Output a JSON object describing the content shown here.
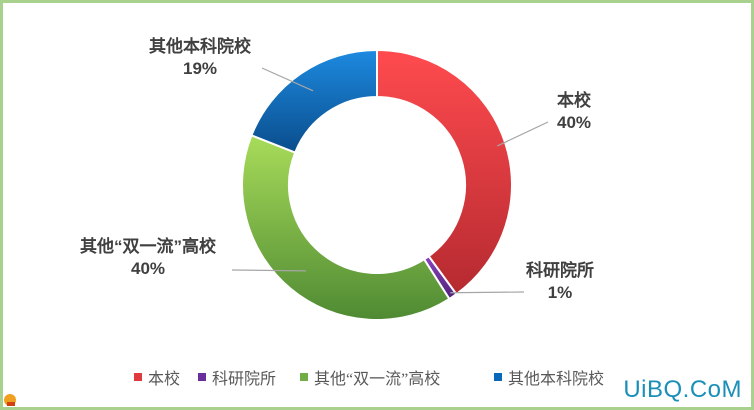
{
  "chart_data": {
    "type": "pie",
    "variant": "donut",
    "slices": [
      {
        "label": "本校",
        "value": 40,
        "display": "40%",
        "color": "#e03a3e"
      },
      {
        "label": "科研院所",
        "value": 1,
        "display": "1%",
        "color": "#6a2f9c"
      },
      {
        "label": "其他“双一流”高校",
        "value": 40,
        "display": "40%",
        "color": "#70ad47"
      },
      {
        "label": "其他本科院校",
        "value": 19,
        "display": "19%",
        "color": "#0a68b8"
      }
    ],
    "legend": {
      "position": "bottom"
    }
  },
  "watermark": "UiBQ.CoM"
}
